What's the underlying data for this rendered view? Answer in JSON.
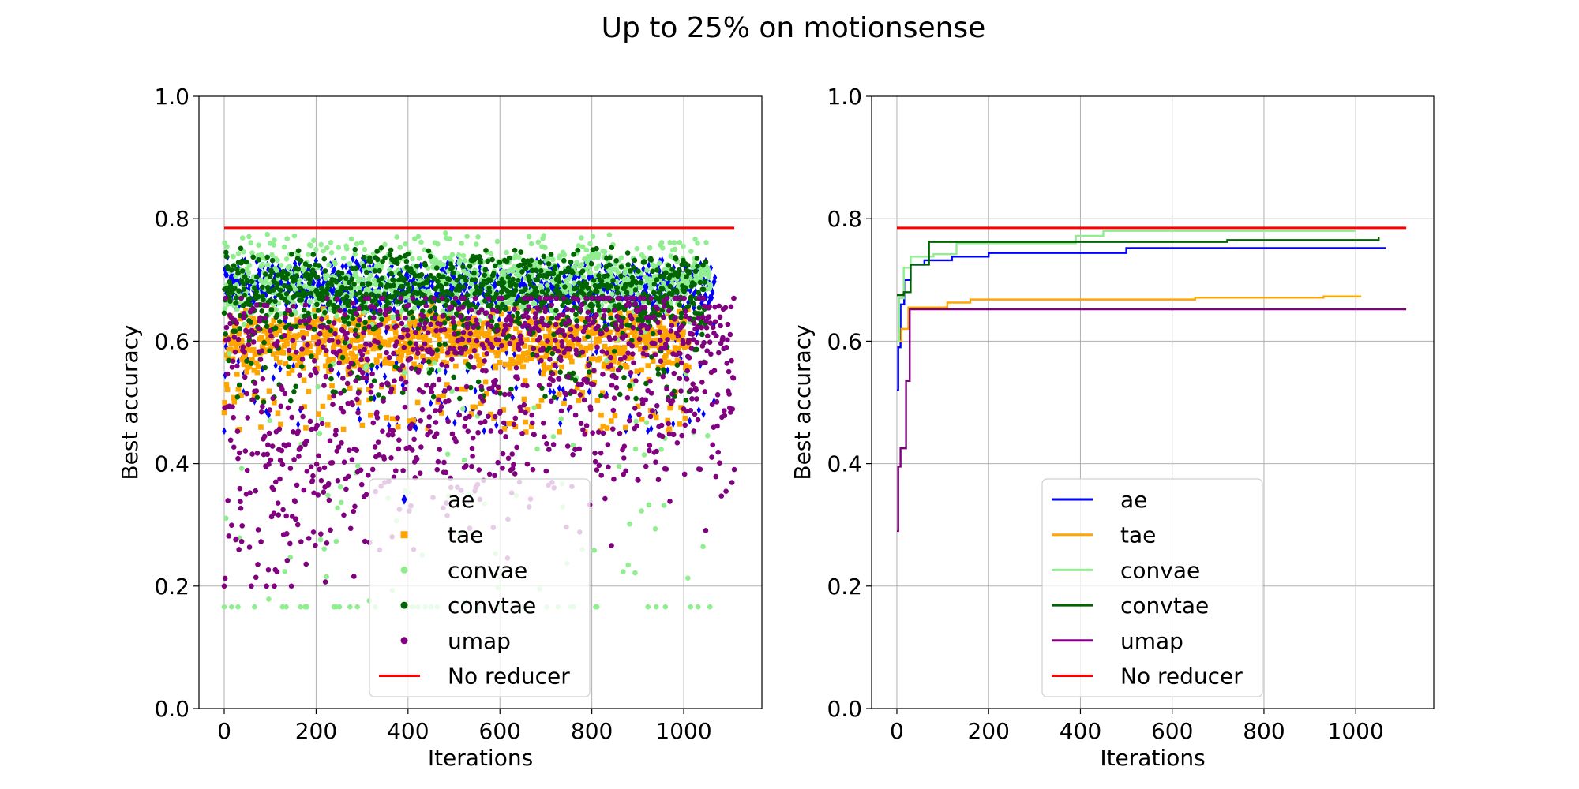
{
  "figure": {
    "title": "Up to 25% on motionsense"
  },
  "chart_data": [
    {
      "type": "scatter",
      "xlabel": "Iterations",
      "ylabel": "Best accuracy",
      "xlim": [
        -55,
        1170
      ],
      "ylim": [
        0.0,
        1.0
      ],
      "xticks": [
        0,
        200,
        400,
        600,
        800,
        1000
      ],
      "yticks": [
        0.0,
        0.2,
        0.4,
        0.6,
        0.8,
        1.0
      ],
      "xtick_labels": [
        "0",
        "200",
        "400",
        "600",
        "800",
        "1000"
      ],
      "ytick_labels": [
        "0.0",
        "0.2",
        "0.4",
        "0.6",
        "0.8",
        "1.0"
      ],
      "grid": true,
      "legend_position": "lower-center",
      "series": [
        {
          "name": "ae",
          "color": "#0000ff",
          "marker": "diamond",
          "n_points": 1070,
          "x_max": 1068,
          "typical_range": [
            0.64,
            0.74
          ],
          "outlier_range": [
            0.45,
            0.64
          ]
        },
        {
          "name": "tae",
          "color": "#ffa500",
          "marker": "square",
          "n_points": 1015,
          "x_max": 1012,
          "typical_range": [
            0.54,
            0.66
          ],
          "outlier_range": [
            0.45,
            0.54
          ]
        },
        {
          "name": "convae",
          "color": "#90ee90",
          "marker": "circle",
          "n_points": 1060,
          "x_max": 1058,
          "typical_range": [
            0.62,
            0.78
          ],
          "outlier_range": [
            0.16,
            0.62
          ],
          "floor_value": 0.166
        },
        {
          "name": "convtae",
          "color": "#006400",
          "marker": "circle",
          "n_points": 1050,
          "x_max": 1048,
          "typical_range": [
            0.6,
            0.76
          ],
          "outlier_range": [
            0.5,
            0.6
          ]
        },
        {
          "name": "umap",
          "color": "#800080",
          "marker": "circle",
          "n_points": 1110,
          "x_max": 1110,
          "typical_range": [
            0.2,
            0.66
          ],
          "outlier_range": [
            0.2,
            0.66
          ]
        }
      ],
      "reference_line": {
        "name": "No reducer",
        "color": "#ff0000",
        "y": 0.785,
        "x": [
          0,
          1110
        ]
      }
    },
    {
      "type": "line",
      "xlabel": "Iterations",
      "ylabel": "Best accuracy",
      "xlim": [
        -55,
        1170
      ],
      "ylim": [
        0.0,
        1.0
      ],
      "xticks": [
        0,
        200,
        400,
        600,
        800,
        1000
      ],
      "yticks": [
        0.0,
        0.2,
        0.4,
        0.6,
        0.8,
        1.0
      ],
      "xtick_labels": [
        "0",
        "200",
        "400",
        "600",
        "800",
        "1000"
      ],
      "ytick_labels": [
        "0.0",
        "0.2",
        "0.4",
        "0.6",
        "0.8",
        "1.0"
      ],
      "grid": true,
      "legend_position": "lower-center",
      "series": [
        {
          "name": "ae",
          "color": "#0000ff",
          "drawstyle": "steps-post",
          "x": [
            0,
            3,
            8,
            16,
            30,
            60,
            120,
            200,
            500,
            1065
          ],
          "y": [
            0.52,
            0.59,
            0.66,
            0.7,
            0.725,
            0.732,
            0.738,
            0.744,
            0.752,
            0.752
          ]
        },
        {
          "name": "tae",
          "color": "#ffa500",
          "drawstyle": "steps-post",
          "x": [
            0,
            10,
            25,
            110,
            160,
            650,
            930,
            1012
          ],
          "y": [
            0.6,
            0.62,
            0.655,
            0.663,
            0.668,
            0.671,
            0.673,
            0.673
          ]
        },
        {
          "name": "convae",
          "color": "#90ee90",
          "drawstyle": "steps-post",
          "x": [
            0,
            5,
            15,
            30,
            80,
            130,
            390,
            450,
            1000
          ],
          "y": [
            0.6,
            0.67,
            0.72,
            0.738,
            0.742,
            0.76,
            0.772,
            0.78,
            0.78
          ]
        },
        {
          "name": "convtae",
          "color": "#006400",
          "drawstyle": "steps-post",
          "x": [
            0,
            15,
            30,
            70,
            720,
            1050
          ],
          "y": [
            0.675,
            0.68,
            0.725,
            0.762,
            0.765,
            0.77
          ]
        },
        {
          "name": "umap",
          "color": "#800080",
          "drawstyle": "steps-post",
          "x": [
            0,
            3,
            8,
            20,
            28,
            1110
          ],
          "y": [
            0.29,
            0.395,
            0.425,
            0.535,
            0.652,
            0.652
          ]
        }
      ],
      "reference_line": {
        "name": "No reducer",
        "color": "#ff0000",
        "y": 0.785,
        "x": [
          0,
          1110
        ]
      }
    }
  ]
}
